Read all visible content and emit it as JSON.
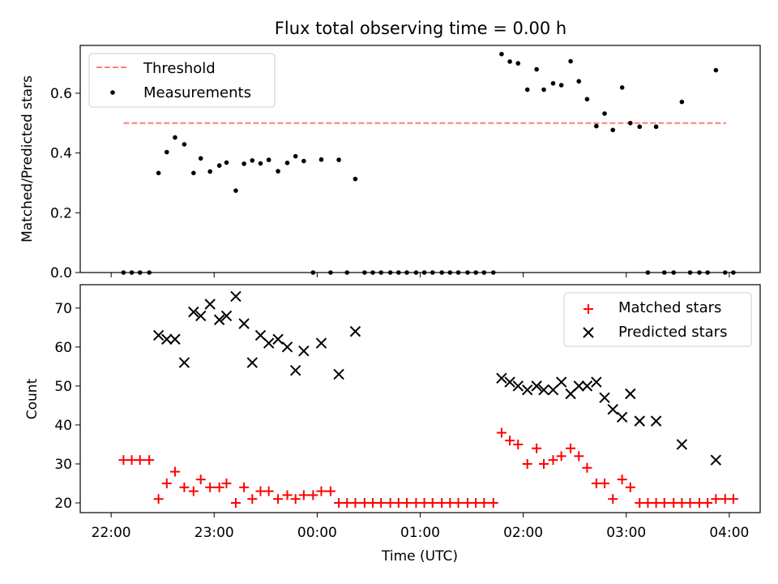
{
  "figure": {
    "title": "Flux total observing time = 0.00 h",
    "xlabel": "Time (UTC)"
  },
  "chart_data": [
    {
      "type": "scatter",
      "panel": "top",
      "title": "Flux total observing time = 0.00 h",
      "xlabel": "",
      "ylabel": "Matched/Predicted stars",
      "x_unit": "hours since 22:00 UTC",
      "xlim": [
        -0.3,
        6.3
      ],
      "ylim": [
        0.0,
        0.76
      ],
      "yticks": [
        0.0,
        0.2,
        0.4,
        0.6
      ],
      "ytick_labels": [
        "0.0",
        "0.2",
        "0.4",
        "0.6"
      ],
      "legend": {
        "placement": "upper-left",
        "entries": [
          "Threshold",
          "Measurements"
        ]
      },
      "threshold": {
        "name": "Threshold",
        "value": 0.5,
        "x_range": [
          0.12,
          5.97
        ],
        "color": "#ff7f7f",
        "style": "dashed"
      },
      "series": [
        {
          "name": "Measurements",
          "marker": "dot",
          "color": "#000000",
          "points": [
            [
              0.12,
              0.0
            ],
            [
              0.2,
              0.0
            ],
            [
              0.28,
              0.0
            ],
            [
              0.37,
              0.0
            ],
            [
              0.46,
              0.333
            ],
            [
              0.54,
              0.403
            ],
            [
              0.62,
              0.452
            ],
            [
              0.71,
              0.429
            ],
            [
              0.8,
              0.333
            ],
            [
              0.87,
              0.382
            ],
            [
              0.96,
              0.338
            ],
            [
              1.05,
              0.358
            ],
            [
              1.12,
              0.368
            ],
            [
              1.21,
              0.274
            ],
            [
              1.29,
              0.364
            ],
            [
              1.37,
              0.375
            ],
            [
              1.45,
              0.365
            ],
            [
              1.53,
              0.377
            ],
            [
              1.62,
              0.339
            ],
            [
              1.71,
              0.367
            ],
            [
              1.79,
              0.389
            ],
            [
              1.87,
              0.373
            ],
            [
              1.96,
              0.0
            ],
            [
              2.04,
              0.378
            ],
            [
              2.13,
              0.0
            ],
            [
              2.21,
              0.377
            ],
            [
              2.29,
              0.0
            ],
            [
              2.37,
              0.313
            ],
            [
              2.46,
              0.0
            ],
            [
              2.54,
              0.0
            ],
            [
              2.62,
              0.0
            ],
            [
              2.71,
              0.0
            ],
            [
              2.79,
              0.0
            ],
            [
              2.87,
              0.0
            ],
            [
              2.96,
              0.0
            ],
            [
              3.04,
              0.0
            ],
            [
              3.12,
              0.0
            ],
            [
              3.21,
              0.0
            ],
            [
              3.29,
              0.0
            ],
            [
              3.37,
              0.0
            ],
            [
              3.46,
              0.0
            ],
            [
              3.54,
              0.0
            ],
            [
              3.62,
              0.0
            ],
            [
              3.71,
              0.0
            ],
            [
              3.79,
              0.731
            ],
            [
              3.87,
              0.706
            ],
            [
              3.95,
              0.7
            ],
            [
              4.04,
              0.612
            ],
            [
              4.13,
              0.68
            ],
            [
              4.2,
              0.612
            ],
            [
              4.29,
              0.633
            ],
            [
              4.37,
              0.627
            ],
            [
              4.46,
              0.707
            ],
            [
              4.54,
              0.64
            ],
            [
              4.62,
              0.58
            ],
            [
              4.71,
              0.49
            ],
            [
              4.79,
              0.532
            ],
            [
              4.87,
              0.477
            ],
            [
              4.96,
              0.619
            ],
            [
              5.04,
              0.5
            ],
            [
              5.13,
              0.488
            ],
            [
              5.21,
              0.0
            ],
            [
              5.29,
              0.488
            ],
            [
              5.37,
              0.0
            ],
            [
              5.46,
              0.0
            ],
            [
              5.54,
              0.571
            ],
            [
              5.62,
              0.0
            ],
            [
              5.71,
              0.0
            ],
            [
              5.79,
              0.0
            ],
            [
              5.87,
              0.677
            ],
            [
              5.96,
              0.0
            ],
            [
              6.04,
              0.0
            ]
          ]
        }
      ]
    },
    {
      "type": "scatter",
      "panel": "bottom",
      "title": "",
      "xlabel": "Time (UTC)",
      "ylabel": "Count",
      "x_unit": "hours since 22:00 UTC",
      "xlim": [
        -0.3,
        6.3
      ],
      "ylim": [
        17.5,
        76
      ],
      "yticks": [
        20,
        30,
        40,
        50,
        60,
        70
      ],
      "ytick_labels": [
        "20",
        "30",
        "40",
        "50",
        "60",
        "70"
      ],
      "xticks": [
        0,
        1,
        2,
        3,
        4,
        5,
        6
      ],
      "xtick_labels": [
        "22:00",
        "23:00",
        "00:00",
        "01:00",
        "02:00",
        "03:00",
        "04:00"
      ],
      "legend": {
        "placement": "upper-right",
        "entries": [
          "Matched stars",
          "Predicted stars"
        ]
      },
      "series": [
        {
          "name": "Matched stars",
          "marker": "plus",
          "color": "#ff0000",
          "points": [
            [
              0.12,
              31
            ],
            [
              0.2,
              31
            ],
            [
              0.28,
              31
            ],
            [
              0.37,
              31
            ],
            [
              0.46,
              21
            ],
            [
              0.54,
              25
            ],
            [
              0.62,
              28
            ],
            [
              0.71,
              24
            ],
            [
              0.8,
              23
            ],
            [
              0.87,
              26
            ],
            [
              0.96,
              24
            ],
            [
              1.05,
              24
            ],
            [
              1.12,
              25
            ],
            [
              1.21,
              20
            ],
            [
              1.29,
              24
            ],
            [
              1.37,
              21
            ],
            [
              1.45,
              23
            ],
            [
              1.53,
              23
            ],
            [
              1.62,
              21
            ],
            [
              1.71,
              22
            ],
            [
              1.79,
              21
            ],
            [
              1.87,
              22
            ],
            [
              1.96,
              22
            ],
            [
              2.04,
              23
            ],
            [
              2.13,
              23
            ],
            [
              2.21,
              20
            ],
            [
              2.29,
              20
            ],
            [
              2.37,
              20
            ],
            [
              2.46,
              20
            ],
            [
              2.54,
              20
            ],
            [
              2.62,
              20
            ],
            [
              2.71,
              20
            ],
            [
              2.79,
              20
            ],
            [
              2.87,
              20
            ],
            [
              2.96,
              20
            ],
            [
              3.04,
              20
            ],
            [
              3.12,
              20
            ],
            [
              3.21,
              20
            ],
            [
              3.29,
              20
            ],
            [
              3.37,
              20
            ],
            [
              3.46,
              20
            ],
            [
              3.54,
              20
            ],
            [
              3.62,
              20
            ],
            [
              3.71,
              20
            ],
            [
              3.79,
              38
            ],
            [
              3.87,
              36
            ],
            [
              3.95,
              35
            ],
            [
              4.04,
              30
            ],
            [
              4.13,
              34
            ],
            [
              4.2,
              30
            ],
            [
              4.29,
              31
            ],
            [
              4.37,
              32
            ],
            [
              4.46,
              34
            ],
            [
              4.54,
              32
            ],
            [
              4.62,
              29
            ],
            [
              4.71,
              25
            ],
            [
              4.79,
              25
            ],
            [
              4.87,
              21
            ],
            [
              4.96,
              26
            ],
            [
              5.04,
              24
            ],
            [
              5.13,
              20
            ],
            [
              5.21,
              20
            ],
            [
              5.29,
              20
            ],
            [
              5.37,
              20
            ],
            [
              5.46,
              20
            ],
            [
              5.54,
              20
            ],
            [
              5.62,
              20
            ],
            [
              5.71,
              20
            ],
            [
              5.79,
              20
            ],
            [
              5.87,
              21
            ],
            [
              5.96,
              21
            ],
            [
              6.04,
              21
            ]
          ]
        },
        {
          "name": "Predicted stars",
          "marker": "x",
          "color": "#000000",
          "points": [
            [
              0.46,
              63
            ],
            [
              0.54,
              62
            ],
            [
              0.62,
              62
            ],
            [
              0.71,
              56
            ],
            [
              0.8,
              69
            ],
            [
              0.87,
              68
            ],
            [
              0.96,
              71
            ],
            [
              1.05,
              67
            ],
            [
              1.12,
              68
            ],
            [
              1.21,
              73
            ],
            [
              1.29,
              66
            ],
            [
              1.37,
              56
            ],
            [
              1.45,
              63
            ],
            [
              1.53,
              61
            ],
            [
              1.62,
              62
            ],
            [
              1.71,
              60
            ],
            [
              1.79,
              54
            ],
            [
              1.87,
              59
            ],
            [
              2.04,
              61
            ],
            [
              2.21,
              53
            ],
            [
              2.37,
              64
            ],
            [
              3.79,
              52
            ],
            [
              3.87,
              51
            ],
            [
              3.95,
              50
            ],
            [
              4.04,
              49
            ],
            [
              4.13,
              50
            ],
            [
              4.2,
              49
            ],
            [
              4.29,
              49
            ],
            [
              4.37,
              51
            ],
            [
              4.46,
              48
            ],
            [
              4.54,
              50
            ],
            [
              4.62,
              50
            ],
            [
              4.71,
              51
            ],
            [
              4.79,
              47
            ],
            [
              4.87,
              44
            ],
            [
              4.96,
              42
            ],
            [
              5.04,
              48
            ],
            [
              5.13,
              41
            ],
            [
              5.29,
              41
            ],
            [
              5.54,
              35
            ],
            [
              5.87,
              31
            ]
          ]
        }
      ]
    }
  ]
}
